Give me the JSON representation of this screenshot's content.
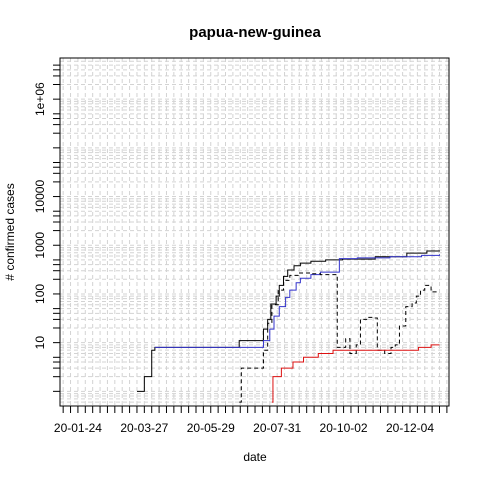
{
  "chart_data": {
    "type": "line",
    "title": "papua-new-guinea",
    "xlabel": "date",
    "ylabel": "# confirmed cases",
    "x_axis": "date",
    "xlim": [
      "2020-01-07",
      "2021-01-10"
    ],
    "y_scale": "log10",
    "ylim": [
      0.5,
      7000000
    ],
    "grid": true,
    "x_tick_labels": [
      "20-01-24",
      "20-03-27",
      "20-05-29",
      "20-07-31",
      "20-10-02",
      "20-12-04"
    ],
    "x_tick_label_dates": [
      "2020-01-24",
      "2020-03-27",
      "2020-05-29",
      "2020-07-31",
      "2020-10-02",
      "2020-12-04"
    ],
    "y_tick_values": [
      10,
      100,
      1000,
      10000,
      1000000
    ],
    "y_tick_labels": [
      "10",
      "100",
      "1000",
      "10000",
      "1e+06"
    ],
    "series": [
      {
        "color": "#000000",
        "dash": "solid",
        "points": [
          [
            "2020-03-20",
            1
          ],
          [
            "2020-03-27",
            2
          ],
          [
            "2020-04-03",
            7
          ],
          [
            "2020-04-06",
            8
          ],
          [
            "2020-06-20",
            8
          ],
          [
            "2020-06-25",
            11
          ],
          [
            "2020-07-14",
            11
          ],
          [
            "2020-07-18",
            19
          ],
          [
            "2020-07-22",
            30
          ],
          [
            "2020-07-25",
            62
          ],
          [
            "2020-07-30",
            90
          ],
          [
            "2020-08-02",
            150
          ],
          [
            "2020-08-06",
            230
          ],
          [
            "2020-08-10",
            310
          ],
          [
            "2020-08-16",
            380
          ],
          [
            "2020-08-22",
            430
          ],
          [
            "2020-09-01",
            470
          ],
          [
            "2020-09-15",
            500
          ],
          [
            "2020-10-01",
            520
          ],
          [
            "2020-11-01",
            580
          ],
          [
            "2020-12-01",
            690
          ],
          [
            "2020-12-20",
            760
          ],
          [
            "2021-01-01",
            780
          ]
        ]
      },
      {
        "color": "#3333cc",
        "dash": "solid",
        "points": [
          [
            "2020-04-06",
            8
          ],
          [
            "2020-06-25",
            8
          ],
          [
            "2020-07-06",
            8
          ],
          [
            "2020-07-18",
            11
          ],
          [
            "2020-07-24",
            19
          ],
          [
            "2020-07-28",
            35
          ],
          [
            "2020-08-02",
            55
          ],
          [
            "2020-08-08",
            85
          ],
          [
            "2020-08-12",
            120
          ],
          [
            "2020-08-18",
            170
          ],
          [
            "2020-08-22",
            210
          ],
          [
            "2020-09-01",
            250
          ],
          [
            "2020-09-10",
            280
          ],
          [
            "2020-09-27",
            280
          ],
          [
            "2020-09-28",
            530
          ],
          [
            "2020-10-15",
            550
          ],
          [
            "2020-11-15",
            580
          ],
          [
            "2020-12-15",
            620
          ],
          [
            "2021-01-01",
            650
          ]
        ]
      },
      {
        "color": "#000000",
        "dash": "dashed",
        "points": [
          [
            "2020-06-25",
            0.6
          ],
          [
            "2020-06-27",
            3
          ],
          [
            "2020-07-14",
            3
          ],
          [
            "2020-07-18",
            7
          ],
          [
            "2020-07-22",
            25
          ],
          [
            "2020-07-26",
            60
          ],
          [
            "2020-08-01",
            120
          ],
          [
            "2020-08-06",
            190
          ],
          [
            "2020-08-12",
            240
          ],
          [
            "2020-08-20",
            270
          ],
          [
            "2020-09-01",
            260
          ],
          [
            "2020-09-10",
            250
          ],
          [
            "2020-09-20",
            250
          ],
          [
            "2020-09-24",
            250
          ],
          [
            "2020-09-26",
            8
          ],
          [
            "2020-09-30",
            8
          ],
          [
            "2020-10-04",
            12
          ],
          [
            "2020-10-08",
            6
          ],
          [
            "2020-10-14",
            9
          ],
          [
            "2020-10-18",
            30
          ],
          [
            "2020-10-24",
            33
          ],
          [
            "2020-11-01",
            32
          ],
          [
            "2020-11-03",
            7
          ],
          [
            "2020-11-10",
            6
          ],
          [
            "2020-11-16",
            8
          ],
          [
            "2020-11-20",
            9
          ],
          [
            "2020-11-24",
            22
          ],
          [
            "2020-11-30",
            55
          ],
          [
            "2020-12-06",
            65
          ],
          [
            "2020-12-10",
            90
          ],
          [
            "2020-12-14",
            120
          ],
          [
            "2020-12-18",
            150
          ],
          [
            "2020-12-24",
            110
          ],
          [
            "2021-01-01",
            110
          ]
        ]
      },
      {
        "color": "#dd1111",
        "dash": "solid",
        "points": [
          [
            "2020-07-26",
            0.6
          ],
          [
            "2020-07-27",
            2
          ],
          [
            "2020-08-02",
            2
          ],
          [
            "2020-08-04",
            3
          ],
          [
            "2020-08-12",
            3
          ],
          [
            "2020-08-15",
            4
          ],
          [
            "2020-08-22",
            4
          ],
          [
            "2020-08-25",
            5
          ],
          [
            "2020-09-04",
            5
          ],
          [
            "2020-09-08",
            6
          ],
          [
            "2020-09-18",
            6
          ],
          [
            "2020-09-22",
            7
          ],
          [
            "2020-12-08",
            7
          ],
          [
            "2020-12-12",
            8
          ],
          [
            "2020-12-20",
            8
          ],
          [
            "2020-12-24",
            9
          ],
          [
            "2021-01-01",
            9
          ]
        ]
      }
    ]
  }
}
